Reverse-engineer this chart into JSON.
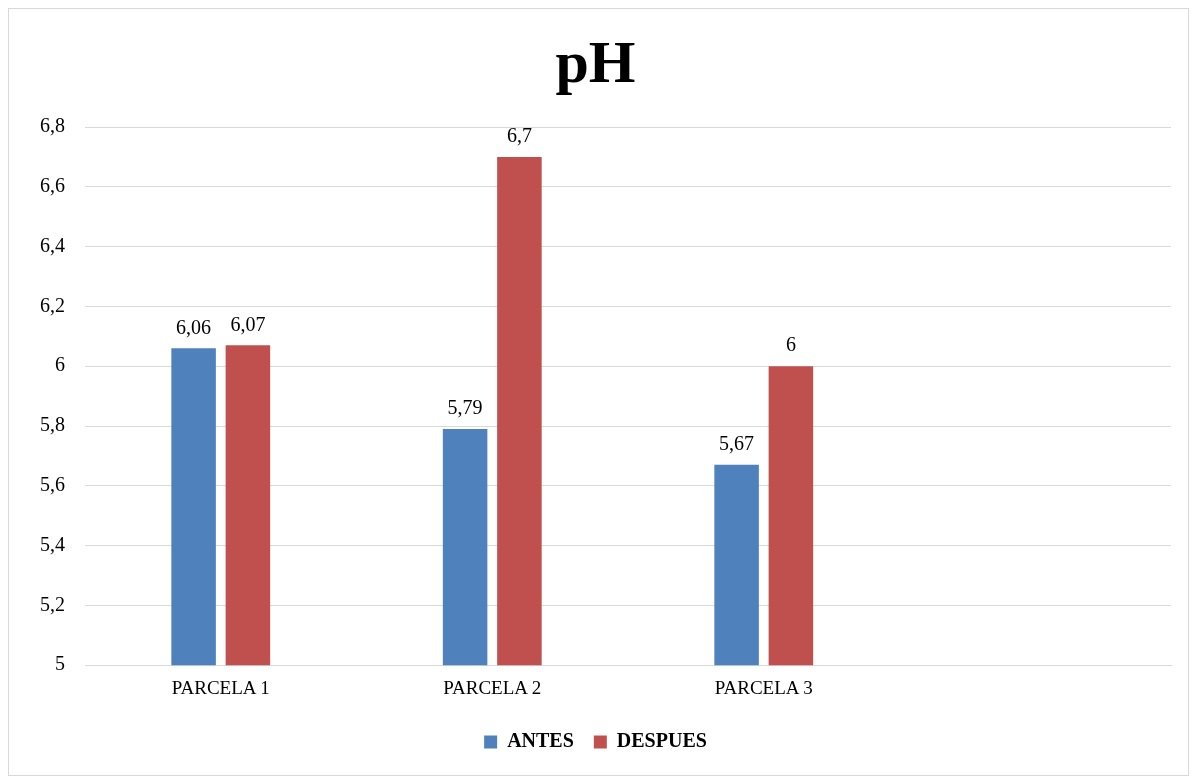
{
  "chart_data": {
    "type": "bar",
    "title": "pH",
    "categories": [
      "PARCELA 1",
      "PARCELA 2",
      "PARCELA 3",
      null
    ],
    "series": [
      {
        "name": "ANTES",
        "color": "#4f81bd",
        "values": [
          6.06,
          5.79,
          5.67,
          null
        ],
        "value_labels": [
          "6,06",
          "5,79",
          "5,67",
          null
        ]
      },
      {
        "name": "DESPUES",
        "color": "#c0504d",
        "values": [
          6.07,
          6.7,
          6.0,
          null
        ],
        "value_labels": [
          "6,07",
          "6,7",
          "6",
          null
        ]
      }
    ],
    "ylim": [
      5,
      6.8
    ],
    "yticks": [
      5,
      {
        "value": 5.2,
        "label": "5,2"
      },
      {
        "value": 5.4,
        "label": "5,4"
      },
      {
        "value": 5.6,
        "label": "5,6"
      },
      {
        "value": 5.8,
        "label": "5,8"
      },
      6,
      {
        "value": 6.2,
        "label": "6,2"
      },
      {
        "value": 6.4,
        "label": "6,4"
      },
      {
        "value": 6.6,
        "label": "6,6"
      },
      {
        "value": 6.8,
        "label": "6,8"
      }
    ],
    "grid": "y",
    "legend": "bottom"
  }
}
